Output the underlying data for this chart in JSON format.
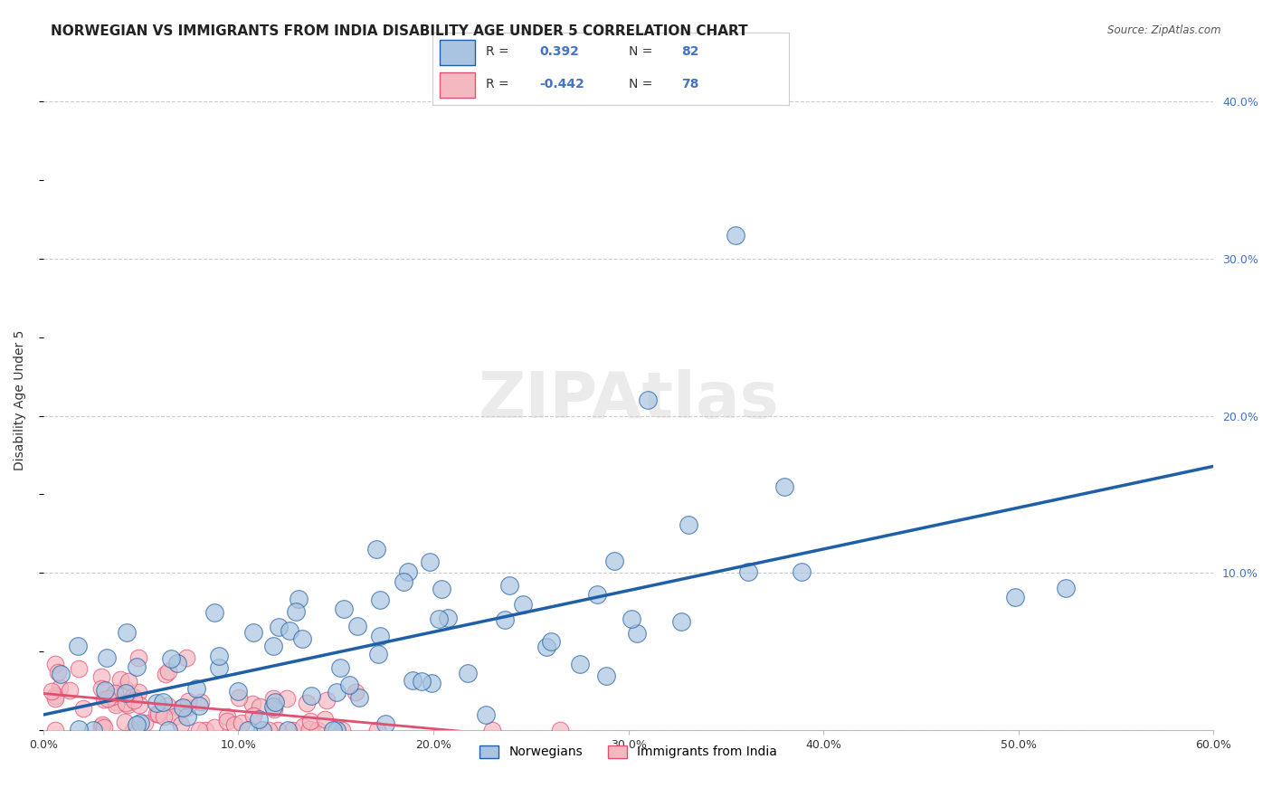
{
  "title": "NORWEGIAN VS IMMIGRANTS FROM INDIA DISABILITY AGE UNDER 5 CORRELATION CHART",
  "source": "Source: ZipAtlas.com",
  "xlabel": "",
  "ylabel": "Disability Age Under 5",
  "xlim": [
    0.0,
    0.6
  ],
  "ylim": [
    0.0,
    0.42
  ],
  "xticks": [
    0.0,
    0.1,
    0.2,
    0.3,
    0.4,
    0.5,
    0.6
  ],
  "xtick_labels": [
    "0.0%",
    "10.0%",
    "20.0%",
    "30.0%",
    "40.0%",
    "50.0%",
    "60.0%"
  ],
  "yticks": [
    0.0,
    0.1,
    0.2,
    0.3,
    0.4
  ],
  "ytick_labels": [
    "",
    "10.0%",
    "20.0%",
    "30.0%",
    "40.0%"
  ],
  "blue_R": 0.392,
  "blue_N": 82,
  "pink_R": -0.442,
  "pink_N": 78,
  "blue_color": "#a8c4e0",
  "blue_line_color": "#1f5fa6",
  "pink_color": "#f4b8c1",
  "pink_line_color": "#e05070",
  "watermark": "ZIPAtlas",
  "legend_label_blue": "Norwegians",
  "legend_label_pink": "Immigrants from India",
  "background_color": "#ffffff",
  "grid_color": "#cccccc",
  "title_fontsize": 11,
  "axis_label_fontsize": 10,
  "tick_fontsize": 9,
  "blue_seed": 42,
  "pink_seed": 7
}
